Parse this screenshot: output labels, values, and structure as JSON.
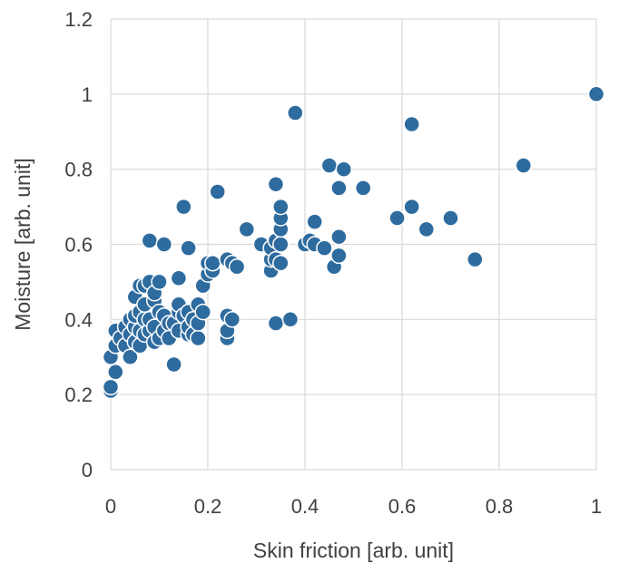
{
  "chart_data": {
    "type": "scatter",
    "title": "",
    "xlabel": "Skin friction [arb. unit]",
    "ylabel": "Moisture [arb. unit]",
    "xlim": [
      0,
      1
    ],
    "ylim": [
      0,
      1.2
    ],
    "x_ticks": [
      "0",
      "0.2",
      "0.4",
      "0.6",
      "0.8",
      "1"
    ],
    "y_ticks": [
      "0",
      "0.2",
      "0.4",
      "0.6",
      "0.8",
      "1",
      "1.2"
    ],
    "grid": true,
    "marker_color": "#2e6b9e",
    "series": [
      {
        "points": [
          [
            0.0,
            0.21
          ],
          [
            0.0,
            0.22
          ],
          [
            0.01,
            0.26
          ],
          [
            0.0,
            0.3
          ],
          [
            0.01,
            0.33
          ],
          [
            0.01,
            0.37
          ],
          [
            0.02,
            0.35
          ],
          [
            0.03,
            0.33
          ],
          [
            0.03,
            0.38
          ],
          [
            0.04,
            0.3
          ],
          [
            0.04,
            0.36
          ],
          [
            0.04,
            0.4
          ],
          [
            0.05,
            0.34
          ],
          [
            0.05,
            0.38
          ],
          [
            0.05,
            0.41
          ],
          [
            0.05,
            0.46
          ],
          [
            0.06,
            0.33
          ],
          [
            0.06,
            0.37
          ],
          [
            0.06,
            0.42
          ],
          [
            0.06,
            0.49
          ],
          [
            0.07,
            0.4
          ],
          [
            0.07,
            0.44
          ],
          [
            0.07,
            0.49
          ],
          [
            0.07,
            0.36
          ],
          [
            0.08,
            0.37
          ],
          [
            0.08,
            0.4
          ],
          [
            0.08,
            0.5
          ],
          [
            0.08,
            0.61
          ],
          [
            0.09,
            0.34
          ],
          [
            0.09,
            0.38
          ],
          [
            0.09,
            0.45
          ],
          [
            0.09,
            0.47
          ],
          [
            0.1,
            0.35
          ],
          [
            0.1,
            0.42
          ],
          [
            0.1,
            0.5
          ],
          [
            0.11,
            0.6
          ],
          [
            0.11,
            0.37
          ],
          [
            0.11,
            0.41
          ],
          [
            0.12,
            0.39
          ],
          [
            0.12,
            0.35
          ],
          [
            0.13,
            0.28
          ],
          [
            0.13,
            0.39
          ],
          [
            0.14,
            0.37
          ],
          [
            0.14,
            0.42
          ],
          [
            0.14,
            0.44
          ],
          [
            0.14,
            0.51
          ],
          [
            0.15,
            0.7
          ],
          [
            0.15,
            0.41
          ],
          [
            0.16,
            0.36
          ],
          [
            0.16,
            0.38
          ],
          [
            0.16,
            0.42
          ],
          [
            0.16,
            0.59
          ],
          [
            0.17,
            0.4
          ],
          [
            0.17,
            0.36
          ],
          [
            0.18,
            0.35
          ],
          [
            0.18,
            0.39
          ],
          [
            0.18,
            0.44
          ],
          [
            0.19,
            0.42
          ],
          [
            0.19,
            0.49
          ],
          [
            0.2,
            0.52
          ],
          [
            0.2,
            0.55
          ],
          [
            0.21,
            0.53
          ],
          [
            0.21,
            0.55
          ],
          [
            0.22,
            0.74
          ],
          [
            0.24,
            0.35
          ],
          [
            0.24,
            0.37
          ],
          [
            0.24,
            0.41
          ],
          [
            0.24,
            0.56
          ],
          [
            0.25,
            0.4
          ],
          [
            0.25,
            0.55
          ],
          [
            0.26,
            0.54
          ],
          [
            0.28,
            0.64
          ],
          [
            0.31,
            0.6
          ],
          [
            0.33,
            0.53
          ],
          [
            0.33,
            0.56
          ],
          [
            0.33,
            0.59
          ],
          [
            0.34,
            0.39
          ],
          [
            0.34,
            0.56
          ],
          [
            0.34,
            0.61
          ],
          [
            0.34,
            0.76
          ],
          [
            0.35,
            0.55
          ],
          [
            0.35,
            0.6
          ],
          [
            0.35,
            0.64
          ],
          [
            0.35,
            0.67
          ],
          [
            0.35,
            0.7
          ],
          [
            0.37,
            0.4
          ],
          [
            0.38,
            0.95
          ],
          [
            0.4,
            0.6
          ],
          [
            0.41,
            0.61
          ],
          [
            0.42,
            0.66
          ],
          [
            0.42,
            0.6
          ],
          [
            0.44,
            0.59
          ],
          [
            0.45,
            0.81
          ],
          [
            0.46,
            0.54
          ],
          [
            0.47,
            0.57
          ],
          [
            0.47,
            0.62
          ],
          [
            0.47,
            0.75
          ],
          [
            0.48,
            0.8
          ],
          [
            0.52,
            0.75
          ],
          [
            0.59,
            0.67
          ],
          [
            0.62,
            0.7
          ],
          [
            0.62,
            0.92
          ],
          [
            0.65,
            0.64
          ],
          [
            0.7,
            0.67
          ],
          [
            0.75,
            0.56
          ],
          [
            0.85,
            0.81
          ],
          [
            1.0,
            1.0
          ]
        ]
      }
    ]
  }
}
